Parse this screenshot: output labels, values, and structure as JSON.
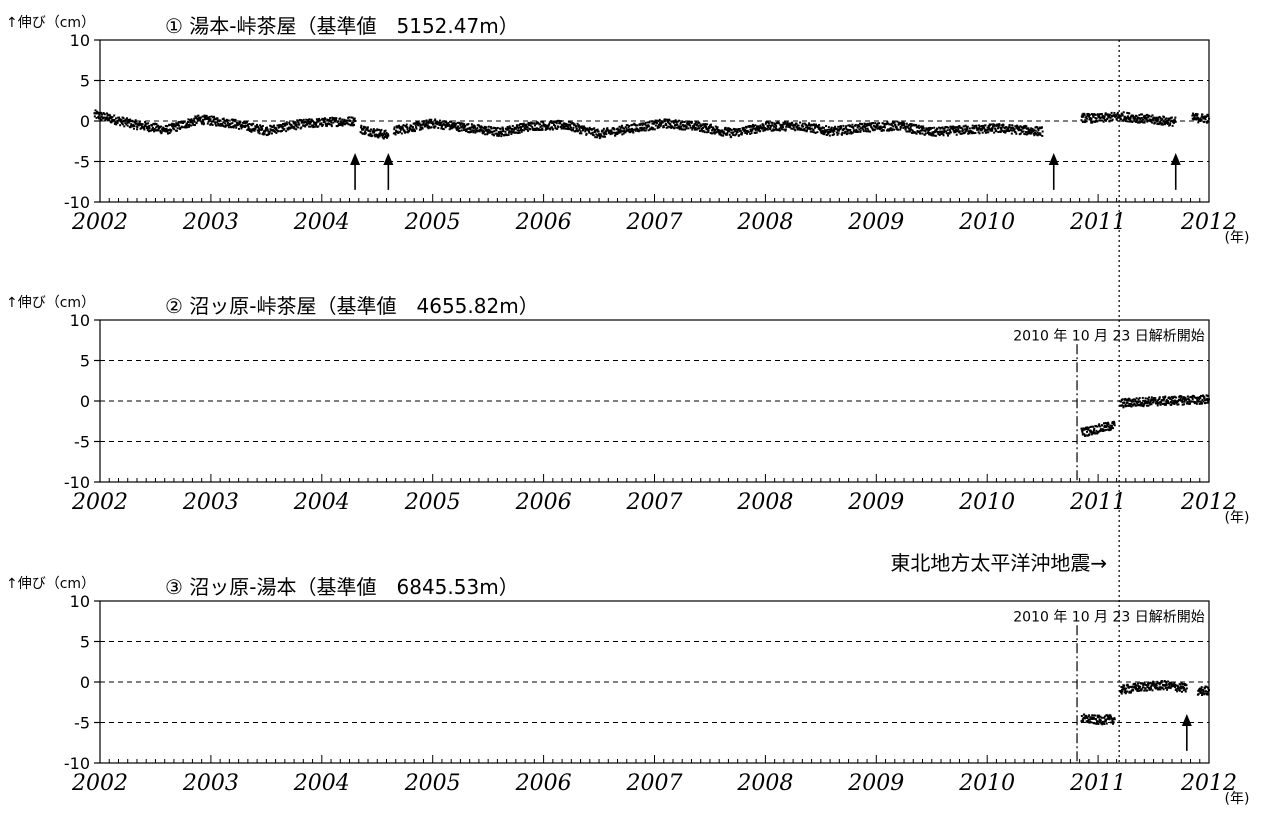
{
  "chart_data": [
    {
      "type": "scatter",
      "title": "① 湯本-峠茶屋（基準値　5152.47m）",
      "ylabel": "↑伸び（cm）",
      "xunit": "(年)",
      "xlim": [
        2002,
        2012
      ],
      "ylim": [
        -10,
        10
      ],
      "yticks": [
        "10",
        "5",
        "0",
        "-5",
        "-10"
      ],
      "xticks": [
        "2002",
        "2003",
        "2004",
        "2005",
        "2006",
        "2007",
        "2008",
        "2009",
        "2010",
        "2011",
        "2012"
      ],
      "grid": "dashed horizontal at -5, 0, 5",
      "note": "",
      "start_line": null,
      "segments": [
        {
          "x": [
            2001.95,
            2002.3,
            2002.6,
            2002.9,
            2003.2,
            2003.5,
            2003.8,
            2004.1,
            2004.3
          ],
          "y": [
            0.8,
            -0.4,
            -1.1,
            0.2,
            -0.3,
            -1.2,
            -0.4,
            -0.1,
            0.0
          ]
        },
        {
          "x": [
            2004.35,
            2004.6
          ],
          "y": [
            -1.0,
            -1.8
          ]
        },
        {
          "x": [
            2004.65,
            2005.0,
            2005.3,
            2005.6,
            2005.9,
            2006.2,
            2006.5,
            2006.8,
            2007.1,
            2007.4,
            2007.7,
            2008.0,
            2008.3,
            2008.6,
            2008.9,
            2009.2,
            2009.5,
            2009.8,
            2010.1,
            2010.5
          ],
          "y": [
            -1.2,
            -0.3,
            -0.8,
            -1.4,
            -0.6,
            -0.5,
            -1.6,
            -0.9,
            -0.3,
            -0.7,
            -1.5,
            -0.7,
            -0.6,
            -1.3,
            -0.8,
            -0.6,
            -1.4,
            -1.1,
            -0.9,
            -1.3
          ]
        },
        {
          "x": [
            2010.85,
            2011.0,
            2011.2,
            2011.45,
            2011.7
          ],
          "y": [
            0.4,
            0.3,
            0.6,
            0.2,
            -0.1
          ]
        },
        {
          "x": [
            2011.85,
            2012.0
          ],
          "y": [
            0.4,
            0.3
          ]
        }
      ],
      "arrows": [
        2004.3,
        2004.6,
        2010.6,
        2011.7
      ],
      "earthquake": 2011.19
    },
    {
      "type": "scatter",
      "title": "② 沼ッ原-峠茶屋（基準値　4655.82m）",
      "ylabel": "↑伸び（cm）",
      "xunit": "(年)",
      "xlim": [
        2002,
        2012
      ],
      "ylim": [
        -10,
        10
      ],
      "yticks": [
        "10",
        "5",
        "0",
        "-5",
        "-10"
      ],
      "xticks": [
        "2002",
        "2003",
        "2004",
        "2005",
        "2006",
        "2007",
        "2008",
        "2009",
        "2010",
        "2011",
        "2012"
      ],
      "grid": "dashed horizontal at -5, 0, 5",
      "note": "2010 年 10 月 23 日解析開始",
      "start_line": 2010.81,
      "segments": [
        {
          "x": [
            2010.85,
            2010.95,
            2011.05,
            2011.15
          ],
          "y": [
            -3.9,
            -3.6,
            -3.3,
            -3.0
          ]
        },
        {
          "x": [
            2011.2,
            2011.4,
            2011.6,
            2011.8,
            2012.0
          ],
          "y": [
            -0.3,
            -0.1,
            0.0,
            0.1,
            0.2
          ]
        }
      ],
      "arrows": [],
      "earthquake": 2011.19
    },
    {
      "type": "scatter",
      "title": "③ 沼ッ原-湯本（基準値　6845.53m）",
      "ylabel": "↑伸び（cm）",
      "xunit": "(年)",
      "xlim": [
        2002,
        2012
      ],
      "ylim": [
        -10,
        10
      ],
      "yticks": [
        "10",
        "5",
        "0",
        "-5",
        "-10"
      ],
      "xticks": [
        "2002",
        "2003",
        "2004",
        "2005",
        "2006",
        "2007",
        "2008",
        "2009",
        "2010",
        "2011",
        "2012"
      ],
      "grid": "dashed horizontal at -5, 0, 5",
      "note": "2010 年 10 月 23 日解析開始",
      "start_line": 2010.81,
      "segments": [
        {
          "x": [
            2010.85,
            2011.0,
            2011.15
          ],
          "y": [
            -4.5,
            -4.7,
            -4.6
          ]
        },
        {
          "x": [
            2011.2,
            2011.4,
            2011.6,
            2011.8
          ],
          "y": [
            -1.0,
            -0.6,
            -0.4,
            -0.8
          ]
        },
        {
          "x": [
            2011.9,
            2012.0
          ],
          "y": [
            -1.2,
            -1.0
          ]
        }
      ],
      "arrows": [
        2011.8
      ],
      "earthquake": 2011.19
    }
  ],
  "earthquake_label": "東北地方太平洋沖地震→",
  "earthquake_x": 2011.19
}
